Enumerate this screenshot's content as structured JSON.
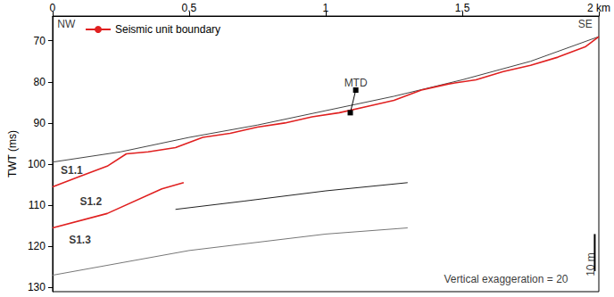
{
  "chart_data": {
    "type": "line",
    "y_label": "TWT (ms)",
    "xlim": [
      0,
      2
    ],
    "xticks": [
      0,
      0.5,
      1,
      1.5,
      {
        "value": 2,
        "label": "2 km"
      }
    ],
    "ylim": [
      131,
      64
    ],
    "yticks": [
      70,
      80,
      90,
      100,
      110,
      120,
      130
    ],
    "grid": false,
    "legend": "top-left",
    "series": [
      {
        "color": "#444444",
        "line_style": "solid",
        "x": [
          0,
          0.25,
          0.5,
          0.75,
          1,
          1.25,
          1.5,
          1.75,
          2
        ],
        "values": [
          99.5,
          97,
          93.5,
          90.5,
          87,
          83.5,
          79.5,
          75,
          69
        ]
      },
      {
        "color": "#222222",
        "line_style": "solid",
        "x": [
          0.45,
          0.7,
          1.0,
          1.3
        ],
        "values": [
          111,
          109,
          106.5,
          104.5
        ]
      },
      {
        "color": "#777777",
        "line_style": "solid",
        "x": [
          0,
          0.5,
          1.0,
          1.3
        ],
        "values": [
          127,
          121,
          117,
          115.5
        ]
      },
      {
        "name": "Seismic unit boundary",
        "color": "#e02020",
        "line_style": "solid",
        "x": [
          0,
          0.1,
          0.2,
          0.27,
          0.35,
          0.45,
          0.55,
          0.65,
          0.75,
          0.85,
          0.95,
          1.05,
          1.15,
          1.25,
          1.35,
          1.45,
          1.55,
          1.65,
          1.75,
          1.85,
          1.95,
          2
        ],
        "values": [
          105.5,
          103,
          100.5,
          97.5,
          97,
          96,
          93.5,
          92.5,
          91,
          90,
          88.5,
          87.5,
          86,
          84.5,
          82,
          80.5,
          79.5,
          77.5,
          76,
          74,
          71.5,
          69
        ]
      },
      {
        "name": "Seismic unit boundary",
        "color": "#e02020",
        "line_style": "solid",
        "x": [
          0,
          0.2,
          0.4,
          0.48
        ],
        "values": [
          115.5,
          112,
          106,
          104.5
        ]
      }
    ],
    "annotations": [
      {
        "text": "NW",
        "x": 0.05,
        "y": 66
      },
      {
        "text": "SE",
        "x": 1.95,
        "y": 66
      },
      {
        "text": "MTD",
        "x": 1.11,
        "y": 82,
        "arrow_to": [
          1.09,
          87.5
        ]
      },
      {
        "text": "S1.1",
        "x": 0.07,
        "y": 101.5
      },
      {
        "text": "S1.2",
        "x": 0.14,
        "y": 109
      },
      {
        "text": "S1.3",
        "x": 0.1,
        "y": 118.5
      },
      {
        "text": "Vertical exaggeration = 20",
        "x": 1.66,
        "y": 128
      }
    ],
    "scale_bar": {
      "label": "10 m",
      "x": 1.985,
      "y": [
        117,
        126
      ]
    }
  }
}
